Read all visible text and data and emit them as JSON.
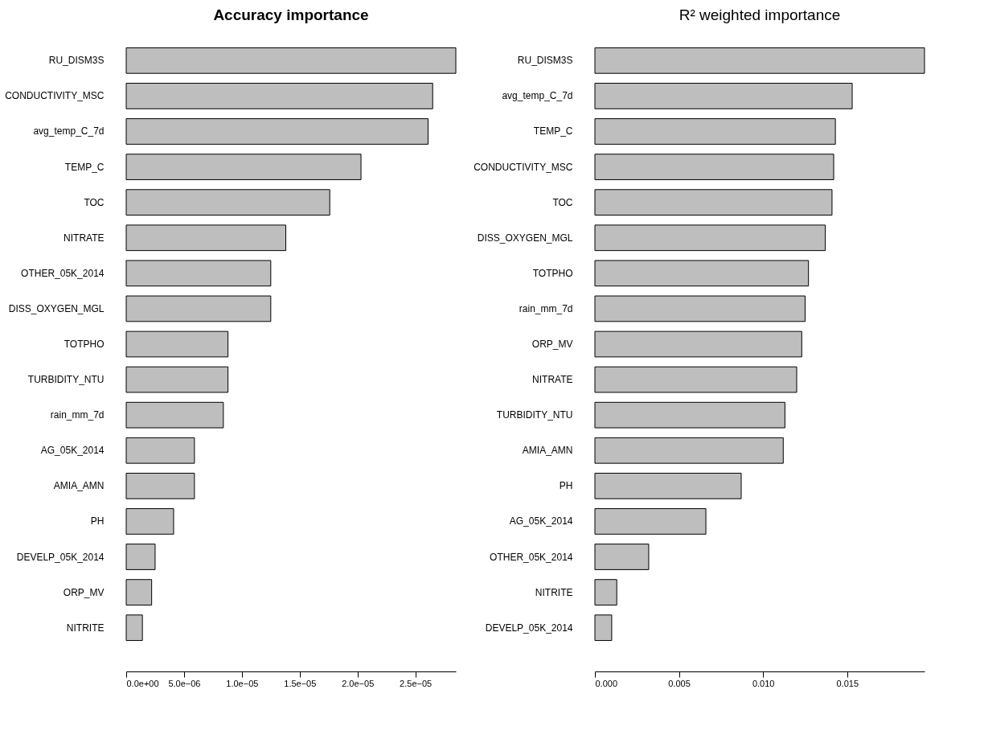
{
  "chart_data": [
    {
      "type": "bar",
      "orientation": "horizontal",
      "title": "Accuracy importance",
      "color": "#bebebe",
      "categories": [
        "RU_DISM3S",
        "CONDUCTIVITY_MSC",
        "avg_temp_C_7d",
        "TEMP_C",
        "TOC",
        "NITRATE",
        "OTHER_05K_2014",
        "DISS_OXYGEN_MGL",
        "TOTPHO",
        "TURBIDITY_NTU",
        "rain_mm_7d",
        "AG_05K_2014",
        "AMIA_AMN",
        "PH",
        "DEVELP_05K_2014",
        "ORP_MV",
        "NITRITE"
      ],
      "values": [
        2.85e-05,
        2.65e-05,
        2.61e-05,
        2.03e-05,
        1.76e-05,
        1.38e-05,
        1.25e-05,
        1.25e-05,
        8.8e-06,
        8.8e-06,
        8.4e-06,
        5.9e-06,
        5.9e-06,
        4.1e-06,
        2.5e-06,
        2.2e-06,
        1.4e-06
      ],
      "xlim": [
        0,
        2.85e-05
      ],
      "xticks": [
        {
          "value": 0,
          "label": "0.0e+00"
        },
        {
          "value": 5e-06,
          "label": "5.0e−06"
        },
        {
          "value": 1e-05,
          "label": "1.0e−05"
        },
        {
          "value": 1.5e-05,
          "label": "1.5e−05"
        },
        {
          "value": 2e-05,
          "label": "2.0e−05"
        },
        {
          "value": 2.5e-05,
          "label": "2.5e−05"
        }
      ]
    },
    {
      "type": "bar",
      "orientation": "horizontal",
      "title": "R² weighted importance",
      "color": "#bebebe",
      "categories": [
        "RU_DISM3S",
        "avg_temp_C_7d",
        "TEMP_C",
        "CONDUCTIVITY_MSC",
        "TOC",
        "DISS_OXYGEN_MGL",
        "TOTPHO",
        "rain_mm_7d",
        "ORP_MV",
        "NITRATE",
        "TURBIDITY_NTU",
        "AMIA_AMN",
        "PH",
        "AG_05K_2014",
        "OTHER_05K_2014",
        "NITRITE",
        "DEVELP_05K_2014"
      ],
      "values": [
        0.0196,
        0.0153,
        0.0143,
        0.0142,
        0.0141,
        0.0137,
        0.0127,
        0.0125,
        0.0123,
        0.012,
        0.0113,
        0.0112,
        0.0087,
        0.0066,
        0.0032,
        0.0013,
        0.001
      ],
      "xlim": [
        0,
        0.0196
      ],
      "xticks": [
        {
          "value": 0,
          "label": "0.000"
        },
        {
          "value": 0.005,
          "label": "0.005"
        },
        {
          "value": 0.01,
          "label": "0.010"
        },
        {
          "value": 0.015,
          "label": "0.015"
        }
      ]
    }
  ]
}
